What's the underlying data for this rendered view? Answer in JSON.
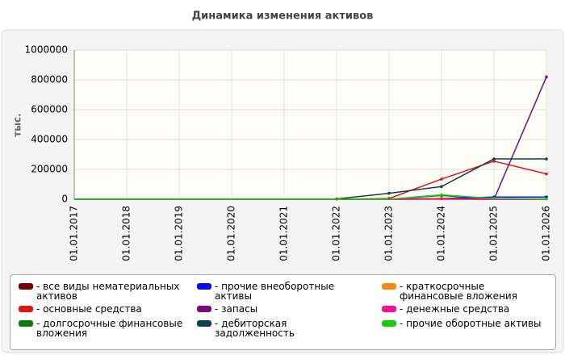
{
  "chart_data": {
    "type": "line",
    "title": "Динамика изменения активов",
    "y_label": "тыс.",
    "categories": [
      "01.01.2017",
      "01.01.2018",
      "01.01.2019",
      "01.01.2020",
      "01.01.2021",
      "01.01.2022",
      "01.01.2023",
      "01.01.2024",
      "01.01.2025",
      "01.01.2026"
    ],
    "ylim": [
      0,
      1000000
    ],
    "yticks": [
      0,
      200000,
      400000,
      600000,
      800000,
      1000000
    ],
    "grid": true,
    "series": [
      {
        "name": "- все виды нематериальных активов",
        "color": "#7a0000",
        "values": [
          0,
          0,
          0,
          0,
          0,
          0,
          0,
          0,
          0,
          0
        ]
      },
      {
        "name": "- основные средства",
        "color": "#e31414",
        "values": [
          0,
          0,
          0,
          0,
          0,
          0,
          5000,
          135000,
          255000,
          170000
        ]
      },
      {
        "name": "- долгосрочные финансовые вложения",
        "color": "#0a7a0a",
        "values": [
          0,
          0,
          0,
          0,
          0,
          0,
          0,
          25000,
          0,
          0
        ]
      },
      {
        "name": "- прочие внеоборотные активы",
        "color": "#0a0aee",
        "values": [
          0,
          0,
          0,
          0,
          0,
          0,
          0,
          5000,
          15000,
          15000
        ]
      },
      {
        "name": "- запасы",
        "color": "#7a0a7a",
        "values": [
          0,
          0,
          0,
          0,
          0,
          0,
          0,
          0,
          0,
          820000
        ]
      },
      {
        "name": "- дебиторская задолженность",
        "color": "#0a4545",
        "values": [
          0,
          0,
          0,
          0,
          0,
          2000,
          40000,
          85000,
          270000,
          270000
        ]
      },
      {
        "name": "- краткосрочные финансовые вложения",
        "color": "#f58a14",
        "values": [
          0,
          0,
          0,
          0,
          0,
          0,
          0,
          0,
          0,
          0
        ]
      },
      {
        "name": "- денежные средства",
        "color": "#ee1490",
        "values": [
          0,
          0,
          0,
          0,
          0,
          0,
          0,
          5000,
          0,
          0
        ]
      },
      {
        "name": "- прочие оборотные активы",
        "color": "#14cc14",
        "values": [
          0,
          0,
          0,
          0,
          0,
          0,
          0,
          30000,
          5000,
          2000
        ]
      }
    ]
  }
}
